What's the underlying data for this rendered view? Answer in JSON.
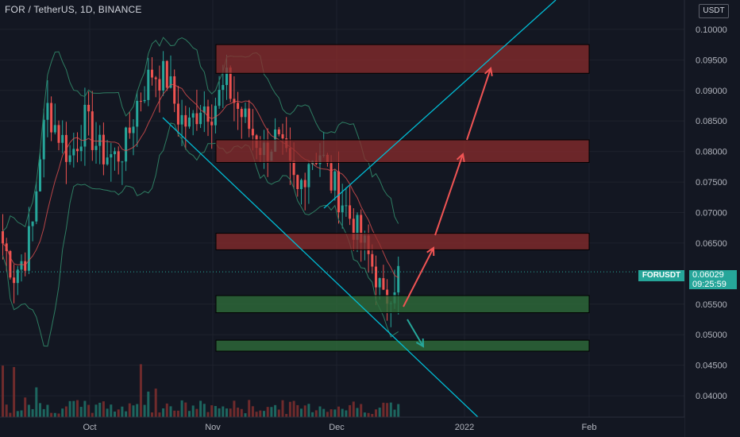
{
  "header": {
    "title": "FOR / TetherUS, 1D, BINANCE"
  },
  "currency_button": {
    "label": "USDT"
  },
  "price_tag": {
    "symbol": "FORUSDT",
    "price": "0.06029",
    "countdown": "09:25:59"
  },
  "colors": {
    "background": "#131722",
    "grid": "#1e222d",
    "up": "#26a69a",
    "down": "#ef5350",
    "trendline": "#00bcd4",
    "resistance_zone": "#8b2c2c",
    "support_zone": "#2e6b3a",
    "arrow_up": "#f05454",
    "arrow_down": "#26a69a",
    "bb_band": "#2e7d62",
    "ma": "#e05050"
  },
  "chart_data": {
    "type": "candlestick",
    "symbol": "FORUSDT",
    "exchange": "BINANCE",
    "interval": "1D",
    "x_tick_labels": [
      "Oct",
      "Nov",
      "Dec",
      "2022",
      "Feb"
    ],
    "y_tick_labels": [
      "0.10000",
      "0.09500",
      "0.09000",
      "0.08500",
      "0.08000",
      "0.07500",
      "0.07000",
      "0.06500",
      "0.05500",
      "0.05000",
      "0.04500",
      "0.04000"
    ],
    "ylim": [
      0.0365,
      0.1048
    ],
    "last_price": 0.06029,
    "resistance_zones": [
      [
        0.0928,
        0.0975
      ],
      [
        0.0782,
        0.0819
      ],
      [
        0.0639,
        0.0666
      ]
    ],
    "support_zones": [
      [
        0.0536,
        0.0564
      ],
      [
        0.0473,
        0.0491
      ]
    ],
    "candle_count": 118,
    "indicators": [
      "Bollinger Bands",
      "Moving Average",
      "Volume"
    ]
  }
}
